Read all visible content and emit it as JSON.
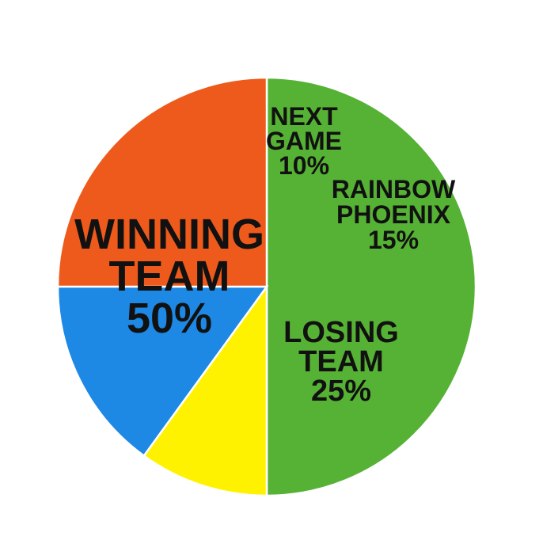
{
  "chart_data": {
    "type": "pie",
    "title": "",
    "slices": [
      {
        "name": "winning-team",
        "lines": [
          "WINNING",
          "TEAM",
          "50%"
        ],
        "value": 50,
        "color": "#56B234"
      },
      {
        "name": "next-game",
        "lines": [
          "NEXT",
          "GAME",
          "10%"
        ],
        "value": 10,
        "color": "#FFF200"
      },
      {
        "name": "rainbow-phoenix",
        "lines": [
          "RAINBOW",
          "PHOENIX",
          "15%"
        ],
        "value": 15,
        "color": "rainbow"
      },
      {
        "name": "losing-team",
        "lines": [
          "LOSING",
          "TEAM",
          "25%"
        ],
        "value": 25,
        "color": "#EE5A1C"
      }
    ],
    "legend": false,
    "grid": false
  }
}
